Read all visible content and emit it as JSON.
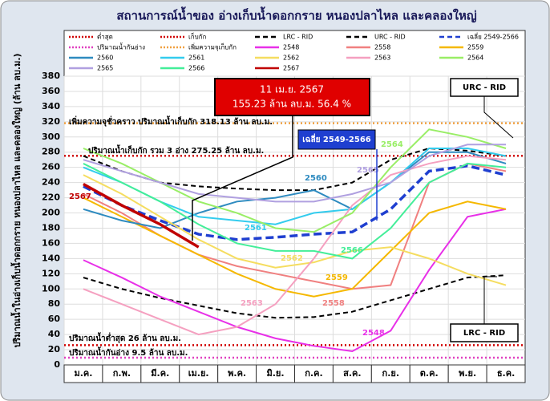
{
  "chart_data": {
    "type": "line",
    "title": "สถานการณ์น้ำของ อ่างเก็บน้ำดอกกราย หนองปลาไหล และคลองใหญ่",
    "y_label": "ปริมาณน้ำในอ่างเก็บน้ำดอกกราย หนองปลาไหล และคลองใหญ่ (ล้าน ลบ.ม.)",
    "categories": [
      "ม.ค.",
      "ก.พ.",
      "มี.ค.",
      "เม.ย.",
      "พ.ค.",
      "มิ.ย.",
      "ก.ค.",
      "ส.ค.",
      "ก.ย.",
      "ต.ค.",
      "พ.ย.",
      "ธ.ค."
    ],
    "ylim": [
      0,
      380
    ],
    "yticks": [
      0,
      20,
      40,
      60,
      80,
      100,
      120,
      140,
      160,
      180,
      200,
      220,
      240,
      260,
      280,
      300,
      320,
      340,
      360,
      380
    ],
    "grid": true,
    "reference_lines": [
      {
        "name": "ต่ำสุด",
        "value": 26,
        "color": "#d00000"
      },
      {
        "name": "เก็บกัก",
        "value": 275.25,
        "color": "#d00000"
      },
      {
        "name": "ปริมาณน้ำกันอ่าง",
        "value": 9.5,
        "color": "#e040c0"
      },
      {
        "name": "เพิ่มความจุเก็บกัก",
        "value": 318.13,
        "color": "#f0a040"
      }
    ],
    "series": [
      {
        "name": "LRC - RID",
        "color": "#000000",
        "dash": "dashed",
        "values": [
          115,
          100,
          88,
          78,
          68,
          62,
          63,
          70,
          85,
          100,
          115,
          118
        ]
      },
      {
        "name": "URC - RID",
        "color": "#000000",
        "dash": "dashed",
        "values": [
          275,
          255,
          240,
          235,
          232,
          230,
          230,
          240,
          270,
          285,
          282,
          275
        ]
      },
      {
        "name": "เฉลี่ย 2549-2566",
        "color": "#1f3fd0",
        "dash": "dashed",
        "values": [
          235,
          210,
          190,
          172,
          165,
          168,
          172,
          175,
          205,
          255,
          262,
          250
        ]
      },
      {
        "name": "2548",
        "color": "#e830e8",
        "values": [
          138,
          115,
          90,
          70,
          50,
          35,
          25,
          18,
          45,
          125,
          195,
          205
        ]
      },
      {
        "name": "2558",
        "color": "#f08080",
        "values": [
          225,
          200,
          170,
          145,
          130,
          120,
          110,
          100,
          105,
          240,
          265,
          255
        ]
      },
      {
        "name": "2559",
        "color": "#f5b800",
        "values": [
          220,
          195,
          170,
          145,
          120,
          100,
          90,
          100,
          150,
          200,
          215,
          205
        ]
      },
      {
        "name": "2560",
        "color": "#2e8bc0",
        "values": [
          205,
          190,
          180,
          200,
          215,
          220,
          230,
          205,
          240,
          280,
          280,
          265
        ]
      },
      {
        "name": "2561",
        "color": "#33ccee",
        "values": [
          260,
          240,
          215,
          195,
          190,
          185,
          200,
          205,
          240,
          285,
          285,
          275
        ]
      },
      {
        "name": "2562",
        "color": "#f5dd60",
        "values": [
          250,
          225,
          195,
          165,
          140,
          128,
          135,
          150,
          155,
          140,
          120,
          105
        ]
      },
      {
        "name": "2563",
        "color": "#f5a0c0",
        "values": [
          100,
          80,
          60,
          40,
          50,
          80,
          140,
          210,
          250,
          265,
          275,
          270
        ]
      },
      {
        "name": "2564",
        "color": "#99ee66",
        "values": [
          285,
          265,
          240,
          215,
          200,
          180,
          175,
          200,
          260,
          310,
          300,
          285
        ]
      },
      {
        "name": "2565",
        "color": "#b0a0e0",
        "values": [
          270,
          255,
          240,
          225,
          220,
          215,
          215,
          225,
          240,
          275,
          290,
          290
        ]
      },
      {
        "name": "2566",
        "color": "#44ee99",
        "values": [
          265,
          240,
          215,
          185,
          160,
          150,
          150,
          140,
          180,
          240,
          265,
          260
        ]
      },
      {
        "name": "2567",
        "color": "#c00000",
        "values": [
          238,
          210,
          185,
          155,
          null,
          null,
          null,
          null,
          null,
          null,
          null,
          null
        ]
      }
    ],
    "annotations": [
      {
        "text": "11 เม.ย. 2567"
      },
      {
        "text": "155.23 ล้าน ลบ.ม. 56.4 %"
      },
      {
        "text": "เพิ่มความจุชั่วคราว ปริมาณน้ำเก็บกัก 318.13 ล้าน ลบ.ม."
      },
      {
        "text": "ปริมาณน้ำเก็บกัก รวม 3 อ่าง 275.25 ล้าน ลบ.ม."
      },
      {
        "text": "ปริมาณน้ำต่ำสุด 26 ล้าน ลบ.ม."
      },
      {
        "text": "ปริมาณน้ำกันอ่าง 9.5 ล้าน ลบ.ม."
      }
    ]
  }
}
